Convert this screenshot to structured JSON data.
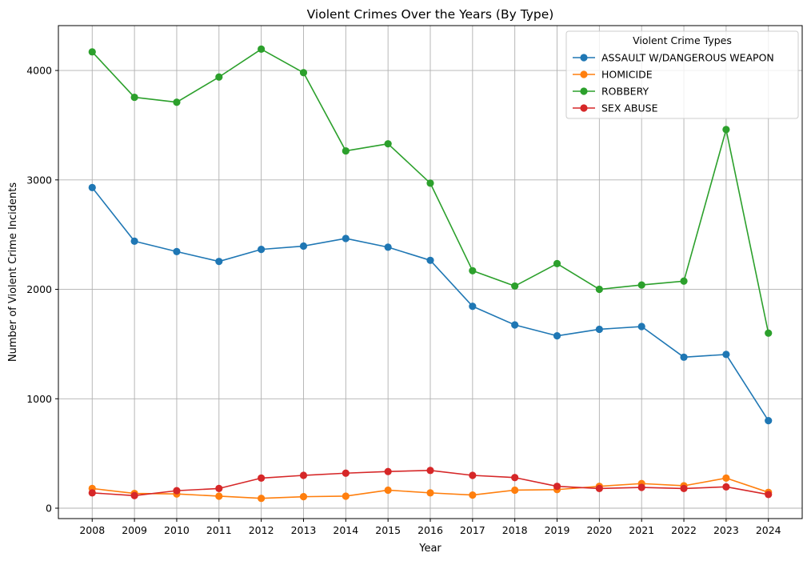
{
  "chart_data": {
    "type": "line",
    "title": "Violent Crimes Over the Years (By Type)",
    "xlabel": "Year",
    "ylabel": "Number of Violent Crime Incidents",
    "x": [
      2008,
      2009,
      2010,
      2011,
      2012,
      2013,
      2014,
      2015,
      2016,
      2017,
      2018,
      2019,
      2020,
      2021,
      2022,
      2023,
      2024
    ],
    "yticks": [
      0,
      1000,
      2000,
      3000,
      4000
    ],
    "ylim": [
      -95,
      4410
    ],
    "grid": true,
    "marker": "circle",
    "legend": {
      "title": "Violent Crime Types",
      "position": "top-right"
    },
    "series": [
      {
        "name": "ASSAULT W/DANGEROUS WEAPON",
        "color": "#1f77b4",
        "values": [
          2930,
          2440,
          2345,
          2255,
          2365,
          2395,
          2465,
          2385,
          2265,
          1845,
          1675,
          1575,
          1635,
          1660,
          1380,
          1405,
          800
        ]
      },
      {
        "name": "HOMICIDE",
        "color": "#ff7f0e",
        "values": [
          180,
          135,
          130,
          110,
          90,
          105,
          110,
          165,
          140,
          120,
          165,
          170,
          200,
          225,
          205,
          275,
          145
        ]
      },
      {
        "name": "ROBBERY",
        "color": "#2ca02c",
        "values": [
          4170,
          3755,
          3710,
          3940,
          4195,
          3980,
          3265,
          3330,
          2970,
          2170,
          2030,
          2235,
          2000,
          2040,
          2075,
          3460,
          1600
        ]
      },
      {
        "name": "SEX ABUSE",
        "color": "#d62728",
        "values": [
          140,
          115,
          160,
          180,
          275,
          300,
          320,
          335,
          345,
          300,
          280,
          200,
          180,
          190,
          180,
          195,
          125
        ]
      }
    ]
  }
}
